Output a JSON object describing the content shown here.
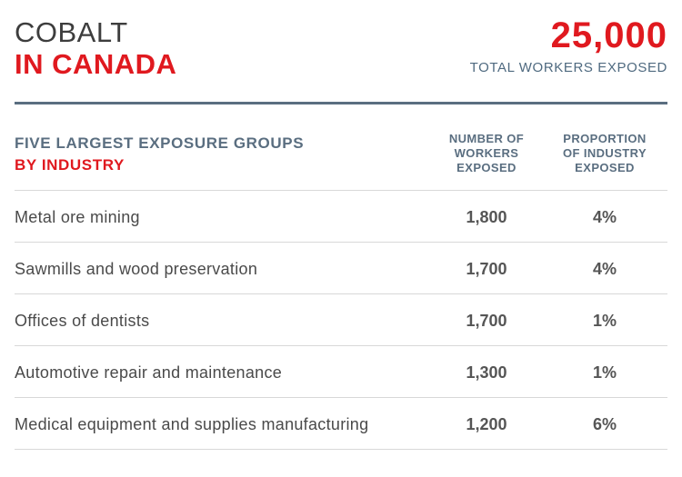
{
  "header": {
    "title_line1": "COBALT",
    "title_line2": "IN CANADA",
    "total_workers": "25,000",
    "total_workers_label": "TOTAL WORKERS EXPOSED"
  },
  "section": {
    "heading_line1": "FIVE LARGEST EXPOSURE GROUPS",
    "heading_line2": "BY INDUSTRY",
    "col_workers": [
      "NUMBER OF",
      "WORKERS",
      "EXPOSED"
    ],
    "col_proportion": [
      "PROPORTION",
      "OF INDUSTRY",
      "EXPOSED"
    ]
  },
  "rows": [
    {
      "industry": "Metal ore mining",
      "workers": "1,800",
      "proportion": "4%"
    },
    {
      "industry": "Sawmills and wood preservation",
      "workers": "1,700",
      "proportion": "4%"
    },
    {
      "industry": "Offices of dentists",
      "workers": "1,700",
      "proportion": "1%"
    },
    {
      "industry": "Automotive repair and maintenance",
      "workers": "1,300",
      "proportion": "1%"
    },
    {
      "industry": "Medical equipment and supplies manufacturing",
      "workers": "1,200",
      "proportion": "6%"
    }
  ],
  "colors": {
    "accent_red": "#e0191f",
    "slate_blue": "#5a6e80",
    "text_gray": "#4a4a4a"
  }
}
